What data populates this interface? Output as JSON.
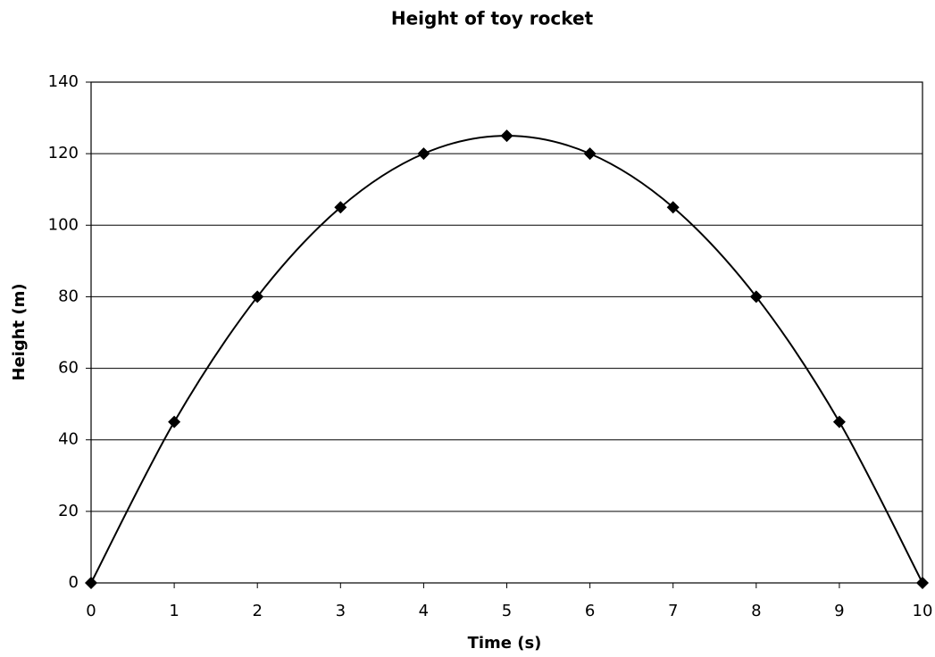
{
  "chart_data": {
    "type": "scatter",
    "title": "Height of toy rocket",
    "x_label": "Time (s)",
    "y_label": "Height (m)",
    "x": [
      0,
      1,
      2,
      3,
      4,
      5,
      6,
      7,
      8,
      9,
      10
    ],
    "values": [
      0,
      45,
      80,
      105,
      120,
      125,
      120,
      105,
      80,
      45,
      0
    ],
    "color": "#000000",
    "smooth": true,
    "xlim": [
      0,
      10
    ],
    "xticks": [
      0,
      1,
      2,
      3,
      4,
      5,
      6,
      7,
      8,
      9,
      10
    ],
    "ylim": [
      0,
      140
    ],
    "yticks": [
      0,
      20,
      40,
      60,
      80,
      100,
      120,
      140
    ],
    "grid": true
  }
}
